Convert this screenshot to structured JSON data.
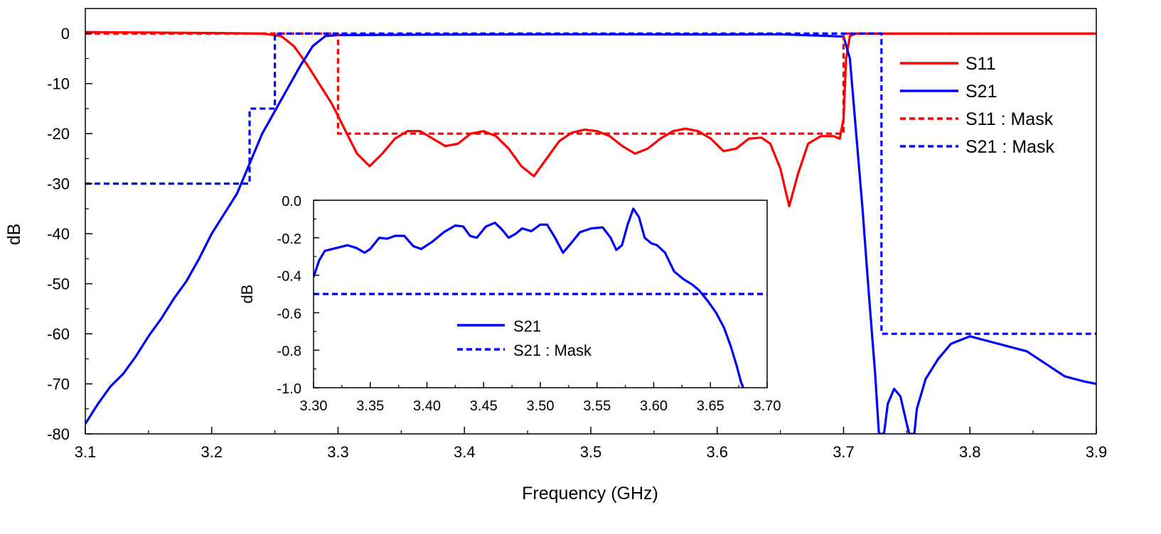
{
  "colors": {
    "s11": "#ff0000",
    "s21": "#0000ff",
    "axis": "#000000",
    "background": "#ffffff"
  },
  "chart_data": [
    {
      "type": "line",
      "role": "main",
      "xlabel": "Frequency (GHz)",
      "ylabel": "dB",
      "xlim": [
        3.1,
        3.9
      ],
      "ylim": [
        -80,
        5
      ],
      "x_ticks": [
        3.1,
        3.2,
        3.3,
        3.4,
        3.5,
        3.6,
        3.7,
        3.8,
        3.9
      ],
      "x_tick_labels": [
        "3.1",
        "3.2",
        "3.3",
        "3.4",
        "3.5",
        "3.6",
        "3.7",
        "3.8",
        "3.9"
      ],
      "y_ticks": [
        0,
        -10,
        -20,
        -30,
        -40,
        -50,
        -60,
        -70,
        -80
      ],
      "y_tick_labels": [
        "0",
        "-10",
        "-20",
        "-30",
        "-40",
        "-50",
        "-60",
        "-70",
        "-80"
      ],
      "grid": false,
      "legend_position": "top-right",
      "series": [
        {
          "name": "S11",
          "color": "#ff0000",
          "dash": "solid",
          "points": [
            [
              3.1,
              0.3
            ],
            [
              3.15,
              0.2
            ],
            [
              3.2,
              0.1
            ],
            [
              3.24,
              0
            ],
            [
              3.255,
              -0.5
            ],
            [
              3.265,
              -2.5
            ],
            [
              3.275,
              -6
            ],
            [
              3.285,
              -10
            ],
            [
              3.295,
              -14
            ],
            [
              3.305,
              -19
            ],
            [
              3.315,
              -24
            ],
            [
              3.325,
              -26.5
            ],
            [
              3.335,
              -24
            ],
            [
              3.345,
              -21
            ],
            [
              3.355,
              -19.5
            ],
            [
              3.365,
              -19.5
            ],
            [
              3.375,
              -21
            ],
            [
              3.385,
              -22.5
            ],
            [
              3.395,
              -22
            ],
            [
              3.405,
              -20
            ],
            [
              3.415,
              -19.5
            ],
            [
              3.425,
              -20.5
            ],
            [
              3.435,
              -23
            ],
            [
              3.445,
              -26.5
            ],
            [
              3.455,
              -28.5
            ],
            [
              3.465,
              -25
            ],
            [
              3.475,
              -21.5
            ],
            [
              3.485,
              -19.8
            ],
            [
              3.495,
              -19.2
            ],
            [
              3.505,
              -19.5
            ],
            [
              3.515,
              -20.5
            ],
            [
              3.525,
              -22.5
            ],
            [
              3.535,
              -24
            ],
            [
              3.545,
              -23
            ],
            [
              3.555,
              -21
            ],
            [
              3.565,
              -19.5
            ],
            [
              3.575,
              -19
            ],
            [
              3.585,
              -19.5
            ],
            [
              3.595,
              -21
            ],
            [
              3.605,
              -23.5
            ],
            [
              3.615,
              -23
            ],
            [
              3.625,
              -21
            ],
            [
              3.635,
              -20.8
            ],
            [
              3.642,
              -22
            ],
            [
              3.65,
              -27
            ],
            [
              3.657,
              -34.5
            ],
            [
              3.664,
              -28
            ],
            [
              3.672,
              -22
            ],
            [
              3.682,
              -20.5
            ],
            [
              3.692,
              -20.5
            ],
            [
              3.697,
              -21
            ],
            [
              3.7,
              -17
            ],
            [
              3.702,
              -5
            ],
            [
              3.705,
              -0.5
            ],
            [
              3.71,
              0
            ],
            [
              3.75,
              0
            ],
            [
              3.8,
              0
            ],
            [
              3.9,
              0
            ]
          ]
        },
        {
          "name": "S21",
          "color": "#0000ff",
          "dash": "solid",
          "points": [
            [
              3.1,
              -78
            ],
            [
              3.11,
              -74
            ],
            [
              3.12,
              -70.5
            ],
            [
              3.13,
              -68
            ],
            [
              3.14,
              -64.5
            ],
            [
              3.15,
              -60.5
            ],
            [
              3.16,
              -57
            ],
            [
              3.17,
              -53
            ],
            [
              3.18,
              -49.5
            ],
            [
              3.19,
              -45
            ],
            [
              3.2,
              -40
            ],
            [
              3.21,
              -36
            ],
            [
              3.22,
              -32
            ],
            [
              3.23,
              -26
            ],
            [
              3.24,
              -20
            ],
            [
              3.25,
              -15.5
            ],
            [
              3.26,
              -11
            ],
            [
              3.27,
              -6.5
            ],
            [
              3.28,
              -2.5
            ],
            [
              3.29,
              -0.5
            ],
            [
              3.3,
              -0.3
            ],
            [
              3.4,
              -0.2
            ],
            [
              3.5,
              -0.15
            ],
            [
              3.6,
              -0.2
            ],
            [
              3.65,
              -0.15
            ],
            [
              3.7,
              -0.6
            ],
            [
              3.705,
              -5
            ],
            [
              3.71,
              -20
            ],
            [
              3.715,
              -35
            ],
            [
              3.72,
              -52
            ],
            [
              3.725,
              -68
            ],
            [
              3.728,
              -80
            ],
            [
              3.732,
              -80
            ],
            [
              3.735,
              -74
            ],
            [
              3.74,
              -71
            ],
            [
              3.745,
              -72.5
            ],
            [
              3.75,
              -78
            ],
            [
              3.752,
              -80
            ],
            [
              3.756,
              -80
            ],
            [
              3.758,
              -75
            ],
            [
              3.765,
              -69
            ],
            [
              3.775,
              -65
            ],
            [
              3.785,
              -62
            ],
            [
              3.8,
              -60.5
            ],
            [
              3.815,
              -61.5
            ],
            [
              3.83,
              -62.5
            ],
            [
              3.845,
              -63.5
            ],
            [
              3.86,
              -66
            ],
            [
              3.875,
              -68.5
            ],
            [
              3.89,
              -69.5
            ],
            [
              3.9,
              -70
            ]
          ]
        },
        {
          "name": "S11 : Mask",
          "color": "#ff0000",
          "dash": "dashed",
          "points": [
            [
              3.1,
              0
            ],
            [
              3.3,
              0
            ],
            [
              3.3,
              -20
            ],
            [
              3.7,
              -20
            ],
            [
              3.7,
              0
            ],
            [
              3.9,
              0
            ]
          ]
        },
        {
          "name": "S21 : Mask",
          "color": "#0000ff",
          "dash": "dashed",
          "points": [
            [
              3.1,
              -30
            ],
            [
              3.23,
              -30
            ],
            [
              3.23,
              -15
            ],
            [
              3.25,
              -15
            ],
            [
              3.25,
              0
            ],
            [
              3.73,
              0
            ],
            [
              3.73,
              -60
            ],
            [
              3.9,
              -60
            ]
          ]
        }
      ]
    },
    {
      "type": "line",
      "role": "inset",
      "xlabel": "",
      "ylabel": "dB",
      "xlim": [
        3.3,
        3.7
      ],
      "ylim": [
        -1.0,
        0.0
      ],
      "x_ticks": [
        3.3,
        3.35,
        3.4,
        3.45,
        3.5,
        3.55,
        3.6,
        3.65,
        3.7
      ],
      "x_tick_labels": [
        "3.30",
        "3.35",
        "3.40",
        "3.45",
        "3.50",
        "3.55",
        "3.60",
        "3.65",
        "3.70"
      ],
      "y_ticks": [
        0.0,
        -0.2,
        -0.4,
        -0.6,
        -0.8,
        -1.0
      ],
      "y_tick_labels": [
        "0.0",
        "-0.2",
        "-0.4",
        "-0.6",
        "-0.8",
        "-1.0"
      ],
      "grid": false,
      "legend_position": "bottom-left",
      "series": [
        {
          "name": "S21",
          "color": "#0000ff",
          "dash": "solid",
          "points": [
            [
              3.3,
              -0.41
            ],
            [
              3.305,
              -0.32
            ],
            [
              3.31,
              -0.27
            ],
            [
              3.32,
              -0.255
            ],
            [
              3.33,
              -0.24
            ],
            [
              3.338,
              -0.255
            ],
            [
              3.345,
              -0.28
            ],
            [
              3.35,
              -0.26
            ],
            [
              3.358,
              -0.2
            ],
            [
              3.365,
              -0.205
            ],
            [
              3.372,
              -0.19
            ],
            [
              3.38,
              -0.19
            ],
            [
              3.388,
              -0.245
            ],
            [
              3.395,
              -0.26
            ],
            [
              3.405,
              -0.22
            ],
            [
              3.415,
              -0.17
            ],
            [
              3.425,
              -0.135
            ],
            [
              3.432,
              -0.14
            ],
            [
              3.438,
              -0.19
            ],
            [
              3.444,
              -0.2
            ],
            [
              3.452,
              -0.14
            ],
            [
              3.46,
              -0.12
            ],
            [
              3.466,
              -0.155
            ],
            [
              3.472,
              -0.2
            ],
            [
              3.478,
              -0.18
            ],
            [
              3.484,
              -0.15
            ],
            [
              3.492,
              -0.165
            ],
            [
              3.5,
              -0.13
            ],
            [
              3.506,
              -0.13
            ],
            [
              3.513,
              -0.2
            ],
            [
              3.52,
              -0.28
            ],
            [
              3.527,
              -0.23
            ],
            [
              3.535,
              -0.17
            ],
            [
              3.545,
              -0.15
            ],
            [
              3.555,
              -0.145
            ],
            [
              3.562,
              -0.2
            ],
            [
              3.567,
              -0.265
            ],
            [
              3.572,
              -0.24
            ],
            [
              3.577,
              -0.13
            ],
            [
              3.582,
              -0.045
            ],
            [
              3.587,
              -0.09
            ],
            [
              3.592,
              -0.2
            ],
            [
              3.598,
              -0.23
            ],
            [
              3.603,
              -0.24
            ],
            [
              3.61,
              -0.28
            ],
            [
              3.618,
              -0.38
            ],
            [
              3.626,
              -0.42
            ],
            [
              3.634,
              -0.45
            ],
            [
              3.64,
              -0.48
            ],
            [
              3.648,
              -0.54
            ],
            [
              3.655,
              -0.6
            ],
            [
              3.662,
              -0.68
            ],
            [
              3.668,
              -0.78
            ],
            [
              3.673,
              -0.88
            ],
            [
              3.677,
              -0.97
            ],
            [
              3.679,
              -1.0
            ]
          ]
        },
        {
          "name": "S21 : Mask",
          "color": "#0000ff",
          "dash": "dashed",
          "points": [
            [
              3.3,
              -0.5
            ],
            [
              3.7,
              -0.5
            ]
          ]
        }
      ]
    }
  ]
}
